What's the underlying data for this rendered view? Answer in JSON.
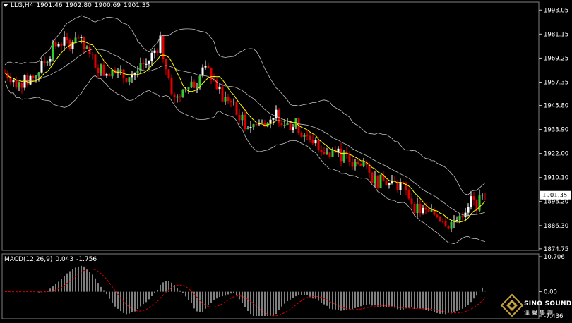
{
  "header": {
    "symbol": "LLG,H4",
    "open": "1901.46",
    "high": "1902.80",
    "low": "1900.69",
    "close": "1901.35"
  },
  "macd_header": {
    "label": "MACD(12,26,9)",
    "main": "0.043",
    "signal": "-1.756"
  },
  "logo": {
    "brand": "SINO SOUND",
    "brand_cn": "漢聲集團"
  },
  "colors": {
    "background": "#000000",
    "bull_candle": "#ffffff",
    "bear_candle": "#e00000",
    "bullish_body": "#ffffff",
    "bearish_body": "#e00000",
    "green_candle": "#33cc33",
    "ma_line": "#ffff00",
    "bands": "#c0c0c0",
    "macd_hist": "#ffffff",
    "macd_signal": "#e00000",
    "current_price_bg": "#ffffff"
  },
  "chart_data": [
    {
      "type": "candlestick",
      "title": "LLG,H4",
      "y_ticks": [
        1993.05,
        1981.15,
        1969.25,
        1957.35,
        1945.8,
        1933.9,
        1922.0,
        1910.1,
        1898.2,
        1886.3,
        1874.75
      ],
      "y_tick_labels": [
        "1993.05",
        "1981.15",
        "1969.25",
        "1957.35",
        "1945.80",
        "1933.90",
        "1922.00",
        "1910.10",
        "1898.20",
        "1886.30",
        "1874.75"
      ],
      "ylim": [
        1874.0,
        1997.0
      ],
      "current_price": 1901.35,
      "current_price_label": "1901.35",
      "close_path": [
        [
          0,
          1962
        ],
        [
          10,
          1960
        ],
        [
          20,
          1956
        ],
        [
          30,
          1958
        ],
        [
          40,
          1960
        ],
        [
          50,
          1964
        ],
        [
          60,
          1970
        ],
        [
          70,
          1975
        ],
        [
          80,
          1978
        ],
        [
          90,
          1976
        ],
        [
          100,
          1981
        ],
        [
          110,
          1975
        ],
        [
          120,
          1970
        ],
        [
          130,
          1966
        ],
        [
          140,
          1962
        ],
        [
          150,
          1963
        ],
        [
          160,
          1961
        ],
        [
          170,
          1960
        ],
        [
          180,
          1962
        ],
        [
          190,
          1963
        ],
        [
          200,
          1966
        ],
        [
          210,
          1972
        ],
        [
          220,
          1977
        ],
        [
          230,
          1962
        ],
        [
          240,
          1948
        ],
        [
          250,
          1952
        ],
        [
          260,
          1958
        ],
        [
          270,
          1956
        ],
        [
          280,
          1963
        ],
        [
          290,
          1962
        ],
        [
          300,
          1955
        ],
        [
          310,
          1948
        ],
        [
          320,
          1950
        ],
        [
          330,
          1940
        ],
        [
          340,
          1937
        ],
        [
          350,
          1936
        ],
        [
          360,
          1937
        ],
        [
          370,
          1935
        ],
        [
          380,
          1942
        ],
        [
          390,
          1940
        ],
        [
          400,
          1936
        ],
        [
          410,
          1937
        ],
        [
          420,
          1933
        ],
        [
          430,
          1930
        ],
        [
          440,
          1928
        ],
        [
          450,
          1924
        ],
        [
          460,
          1922
        ],
        [
          470,
          1923
        ],
        [
          480,
          1920
        ],
        [
          490,
          1918
        ],
        [
          500,
          1917
        ],
        [
          510,
          1914
        ],
        [
          520,
          1910
        ],
        [
          530,
          1908
        ],
        [
          540,
          1908
        ],
        [
          550,
          1907
        ],
        [
          560,
          1906
        ],
        [
          570,
          1902
        ],
        [
          580,
          1896
        ],
        [
          590,
          1893
        ],
        [
          600,
          1892
        ],
        [
          610,
          1892
        ],
        [
          620,
          1890
        ],
        [
          630,
          1887
        ],
        [
          640,
          1889
        ],
        [
          650,
          1894
        ],
        [
          660,
          1898
        ],
        [
          670,
          1897
        ],
        [
          680,
          1901.35
        ]
      ],
      "indicators": [
        "moving-average",
        "bollinger-bands"
      ]
    },
    {
      "type": "histogram",
      "title": "MACD(12,26,9)",
      "y_ticks": [
        10.706,
        0.0,
        -7.436
      ],
      "y_tick_labels": [
        "10.706",
        "0.00",
        "-7.436"
      ],
      "ylim": [
        -7.436,
        10.706
      ],
      "main_value": 0.043,
      "signal_value": -1.756
    }
  ]
}
